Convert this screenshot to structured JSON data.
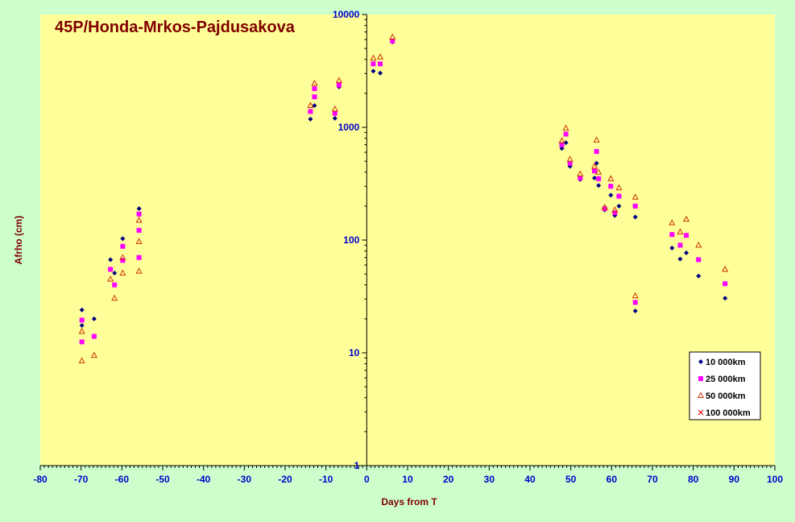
{
  "chart_data": {
    "type": "scatter",
    "title": "45P/Honda-Mrkos-Pajdusakova",
    "xlabel": "Days from T",
    "ylabel": "Afrho (cm)",
    "xlim": [
      -80,
      100
    ],
    "ylim": [
      1,
      10000
    ],
    "yscale": "log",
    "x_ticks": [
      "-80",
      "-70",
      "-60",
      "-50",
      "-40",
      "-30",
      "-20",
      "-10",
      "0",
      "10",
      "20",
      "30",
      "40",
      "50",
      "60",
      "70",
      "80",
      "90",
      "100"
    ],
    "y_ticks": [
      "1",
      "10",
      "100",
      "1000",
      "10000"
    ],
    "grid": false,
    "legend_position": "bottom-right",
    "colors": {
      "plot_background": "#ffff99",
      "figure_background": "#ccffcc",
      "axis": "#000000",
      "tick_labels": "#0000cc",
      "titles": "#800000"
    },
    "series": [
      {
        "name": "10 000km",
        "marker": "diamond",
        "color": "#000080",
        "points": [
          [
            -69.8,
            24
          ],
          [
            -69.8,
            17.5
          ],
          [
            -66.8,
            20
          ],
          [
            -62.8,
            67
          ],
          [
            -61.8,
            51
          ],
          [
            -59.8,
            103
          ],
          [
            -59.8,
            88
          ],
          [
            -55.8,
            190
          ],
          [
            -13.8,
            1180
          ],
          [
            -12.8,
            1560
          ],
          [
            -7.8,
            1200
          ],
          [
            -6.8,
            2280
          ],
          [
            1.6,
            3150
          ],
          [
            3.3,
            3020
          ],
          [
            6.3,
            5700
          ],
          [
            47.8,
            650
          ],
          [
            48.8,
            730
          ],
          [
            49.8,
            450
          ],
          [
            52.3,
            345
          ],
          [
            55.8,
            355
          ],
          [
            56.3,
            480
          ],
          [
            56.8,
            305
          ],
          [
            58.3,
            185
          ],
          [
            59.8,
            250
          ],
          [
            60.8,
            165
          ],
          [
            61.8,
            200
          ],
          [
            65.8,
            160
          ],
          [
            65.8,
            23.5
          ],
          [
            74.8,
            85
          ],
          [
            76.8,
            68
          ],
          [
            78.3,
            77
          ],
          [
            81.3,
            48
          ],
          [
            87.8,
            30.5
          ]
        ]
      },
      {
        "name": "25 000km",
        "marker": "square",
        "color": "#ff00ff",
        "points": [
          [
            -69.8,
            19.5
          ],
          [
            -69.8,
            12.5
          ],
          [
            -66.8,
            14
          ],
          [
            -62.8,
            55
          ],
          [
            -61.8,
            40
          ],
          [
            -59.8,
            88
          ],
          [
            -59.8,
            66
          ],
          [
            -55.8,
            170
          ],
          [
            -55.8,
            122
          ],
          [
            -55.8,
            70
          ],
          [
            -13.8,
            1380
          ],
          [
            -12.8,
            1860
          ],
          [
            -12.8,
            2200
          ],
          [
            -7.8,
            1330
          ],
          [
            -6.8,
            2370
          ],
          [
            1.6,
            3650
          ],
          [
            3.3,
            3650
          ],
          [
            6.3,
            5820
          ],
          [
            47.8,
            700
          ],
          [
            48.8,
            870
          ],
          [
            49.8,
            480
          ],
          [
            52.3,
            355
          ],
          [
            55.8,
            410
          ],
          [
            56.3,
            610
          ],
          [
            56.8,
            350
          ],
          [
            58.3,
            190
          ],
          [
            59.8,
            300
          ],
          [
            60.8,
            175
          ],
          [
            61.8,
            245
          ],
          [
            65.8,
            200
          ],
          [
            65.8,
            28
          ],
          [
            74.8,
            112
          ],
          [
            76.8,
            90
          ],
          [
            78.3,
            110
          ],
          [
            81.3,
            67
          ],
          [
            87.8,
            41
          ]
        ]
      },
      {
        "name": "50 000km",
        "marker": "triangle",
        "color": "#cc3300",
        "points": [
          [
            -69.8,
            15.5
          ],
          [
            -69.8,
            8.5
          ],
          [
            -66.8,
            9.5
          ],
          [
            -62.8,
            45
          ],
          [
            -61.8,
            30.5
          ],
          [
            -59.8,
            70
          ],
          [
            -59.8,
            51
          ],
          [
            -55.8,
            150
          ],
          [
            -55.8,
            97
          ],
          [
            -55.8,
            53
          ],
          [
            -13.8,
            1560
          ],
          [
            -12.8,
            2450
          ],
          [
            -7.8,
            1450
          ],
          [
            -6.8,
            2600
          ],
          [
            1.6,
            4100
          ],
          [
            3.3,
            4200
          ],
          [
            6.3,
            6300
          ],
          [
            47.8,
            760
          ],
          [
            48.8,
            980
          ],
          [
            49.8,
            520
          ],
          [
            52.3,
            385
          ],
          [
            55.8,
            450
          ],
          [
            56.3,
            770
          ],
          [
            56.8,
            400
          ],
          [
            58.3,
            195
          ],
          [
            59.8,
            350
          ],
          [
            60.8,
            185
          ],
          [
            61.8,
            290
          ],
          [
            65.8,
            240
          ],
          [
            65.8,
            32
          ],
          [
            74.8,
            142
          ],
          [
            76.8,
            118
          ],
          [
            78.3,
            153
          ],
          [
            81.3,
            90
          ],
          [
            87.8,
            55
          ]
        ]
      },
      {
        "name": "100 000km",
        "marker": "x",
        "color": "#ff0000",
        "points": []
      }
    ]
  }
}
